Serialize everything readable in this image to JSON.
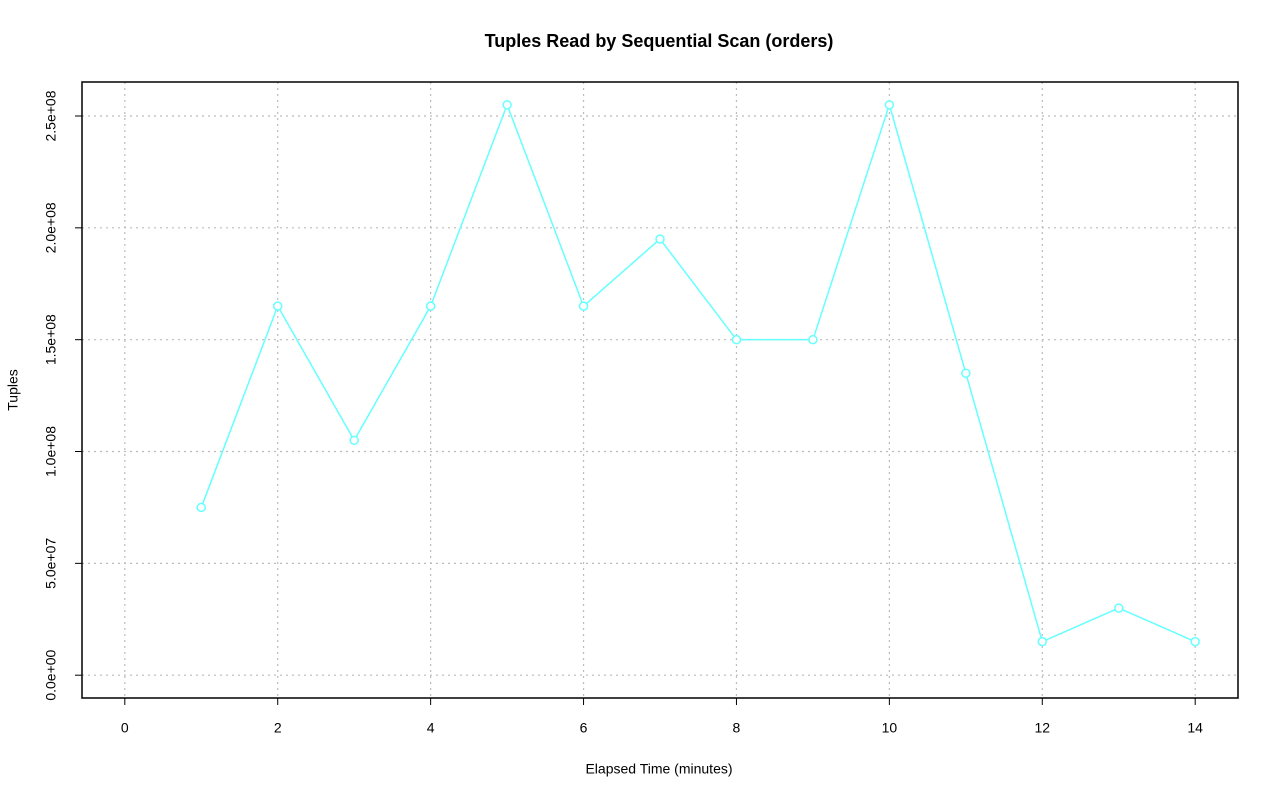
{
  "chart_data": {
    "type": "line",
    "title": "Tuples Read by Sequential Scan (orders)",
    "x_label": "Elapsed Time (minutes)",
    "y_label": "Tuples",
    "x": [
      1,
      2,
      3,
      4,
      5,
      6,
      7,
      8,
      9,
      10,
      11,
      12,
      13,
      14
    ],
    "series": [
      {
        "color": "#66ffff",
        "values": [
          75000000,
          165000000,
          105000000,
          165000000,
          255000000,
          165000000,
          195000000,
          150000000,
          150000000,
          255000000,
          135000000,
          15000000,
          30000000,
          15000000
        ]
      }
    ],
    "xlim": [
      -0.56,
      14.56
    ],
    "xticks": [
      0,
      2,
      4,
      6,
      8,
      10,
      12,
      14
    ],
    "ylim": [
      -10200000,
      265200000
    ],
    "yticks": [
      {
        "value": 0,
        "label": "0.0e+00"
      },
      {
        "value": 50000000,
        "label": "5.0e+07"
      },
      {
        "value": 100000000,
        "label": "1.0e+08"
      },
      {
        "value": 150000000,
        "label": "1.5e+08"
      },
      {
        "value": 200000000,
        "label": "2.0e+08"
      },
      {
        "value": 250000000,
        "label": "2.5e+08"
      }
    ],
    "grid": true
  }
}
